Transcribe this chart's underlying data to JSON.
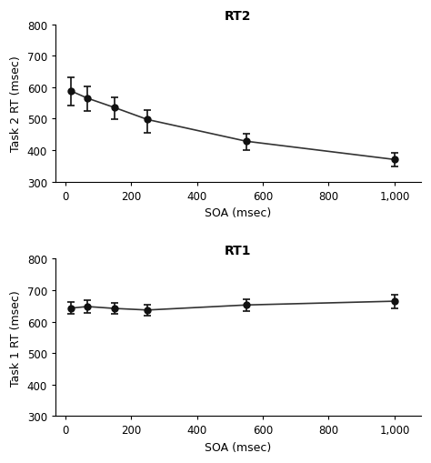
{
  "rt2": {
    "title": "RT2",
    "xlabel": "SOA (msec)",
    "ylabel": "Task 2 RT (msec)",
    "x": [
      17,
      67,
      150,
      250,
      550,
      1000
    ],
    "y": [
      588,
      565,
      535,
      497,
      428,
      370
    ],
    "yerr_lower": [
      45,
      40,
      38,
      42,
      28,
      22
    ],
    "yerr_upper": [
      42,
      38,
      32,
      30,
      25,
      20
    ],
    "ylim": [
      300,
      800
    ],
    "yticks": [
      300,
      400,
      500,
      600,
      700,
      800
    ]
  },
  "rt1": {
    "title": "RT1",
    "xlabel": "SOA (msec)",
    "ylabel": "Task 1 RT (msec)",
    "x": [
      17,
      67,
      150,
      250,
      550,
      1000
    ],
    "y": [
      643,
      648,
      642,
      637,
      653,
      665
    ],
    "yerr_lower": [
      18,
      20,
      18,
      18,
      20,
      22
    ],
    "yerr_upper": [
      18,
      20,
      18,
      18,
      18,
      22
    ],
    "ylim": [
      300,
      800
    ],
    "yticks": [
      300,
      400,
      500,
      600,
      700,
      800
    ]
  },
  "xticks": [
    0,
    200,
    400,
    600,
    800,
    1000
  ],
  "xticklabels": [
    "0",
    "200",
    "400",
    "600",
    "800",
    "1,000"
  ],
  "xlim": [
    -30,
    1080
  ],
  "bg_color": "#ffffff",
  "line_color": "#333333",
  "marker_color": "#111111",
  "title_fontsize": 10,
  "label_fontsize": 9,
  "tick_fontsize": 8.5
}
